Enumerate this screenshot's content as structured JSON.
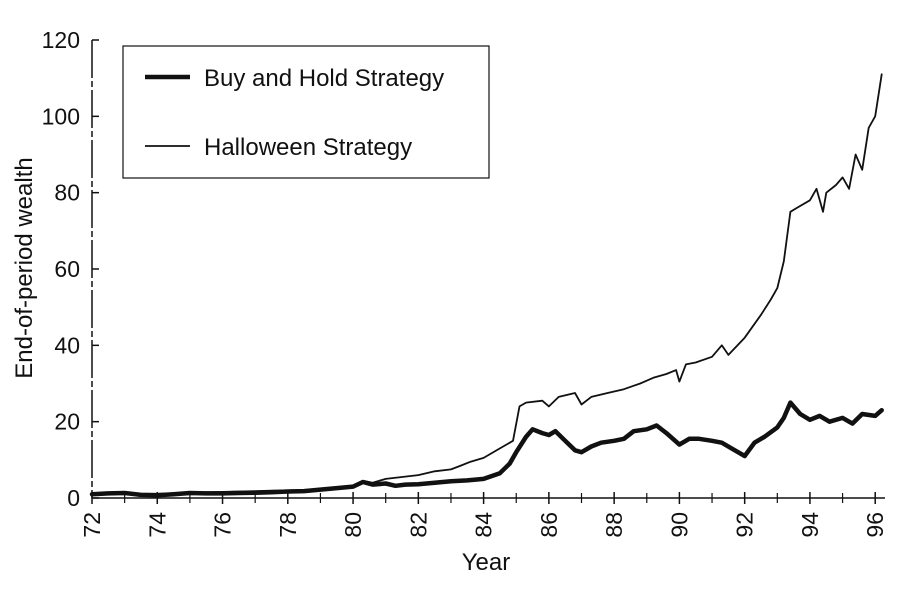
{
  "chart_data": {
    "type": "line",
    "title": "",
    "xlabel": "Year",
    "ylabel": "End-of-period wealth",
    "xlim": [
      1972,
      1996.3
    ],
    "ylim": [
      0,
      120
    ],
    "x_ticks": [
      72,
      74,
      76,
      78,
      80,
      82,
      84,
      86,
      88,
      90,
      92,
      94,
      96
    ],
    "x_tick_labels": [
      "72",
      "74",
      "76",
      "78",
      "80",
      "82",
      "84",
      "86",
      "88",
      "90",
      "92",
      "94",
      "96"
    ],
    "y_ticks": [
      0,
      20,
      40,
      60,
      80,
      100,
      120
    ],
    "y_tick_labels": [
      "0",
      "20",
      "40",
      "60",
      "80",
      "100",
      "120"
    ],
    "grid": false,
    "legend_position": "top-left",
    "series": [
      {
        "name": "Buy and Hold Strategy",
        "style": "thick",
        "color": "#111111",
        "x": [
          1972.0,
          1972.5,
          1973.0,
          1973.5,
          1974.0,
          1974.5,
          1975.0,
          1975.5,
          1976.0,
          1976.5,
          1977.0,
          1977.5,
          1978.0,
          1978.5,
          1979.0,
          1979.5,
          1980.0,
          1980.3,
          1980.6,
          1981.0,
          1981.3,
          1981.6,
          1982.0,
          1982.5,
          1983.0,
          1983.5,
          1984.0,
          1984.5,
          1984.8,
          1985.0,
          1985.3,
          1985.5,
          1985.8,
          1986.0,
          1986.2,
          1986.5,
          1986.8,
          1987.0,
          1987.3,
          1987.6,
          1988.0,
          1988.3,
          1988.6,
          1989.0,
          1989.3,
          1989.6,
          1990.0,
          1990.3,
          1990.6,
          1991.0,
          1991.3,
          1991.6,
          1992.0,
          1992.3,
          1992.6,
          1993.0,
          1993.2,
          1993.4,
          1993.7,
          1994.0,
          1994.3,
          1994.6,
          1995.0,
          1995.3,
          1995.6,
          1996.0,
          1996.2
        ],
        "y": [
          1.0,
          1.2,
          1.3,
          0.8,
          0.7,
          1.0,
          1.3,
          1.2,
          1.2,
          1.3,
          1.4,
          1.5,
          1.7,
          1.8,
          2.2,
          2.6,
          3.0,
          4.2,
          3.5,
          3.8,
          3.2,
          3.5,
          3.6,
          4.0,
          4.4,
          4.6,
          5.0,
          6.5,
          9.0,
          12.0,
          16.0,
          18.0,
          17.0,
          16.5,
          17.5,
          15.0,
          12.5,
          12.0,
          13.5,
          14.5,
          15.0,
          15.5,
          17.5,
          18.0,
          19.0,
          17.0,
          14.0,
          15.5,
          15.5,
          15.0,
          14.5,
          13.0,
          11.0,
          14.5,
          16.0,
          18.5,
          21.0,
          25.0,
          22.0,
          20.5,
          21.5,
          20.0,
          21.0,
          19.5,
          22.0,
          21.5,
          23.0
        ]
      },
      {
        "name": "Halloween Strategy",
        "style": "thin",
        "color": "#111111",
        "x": [
          1972.0,
          1972.5,
          1973.0,
          1973.5,
          1974.0,
          1974.5,
          1975.0,
          1975.5,
          1976.0,
          1976.5,
          1977.0,
          1977.5,
          1978.0,
          1978.5,
          1979.0,
          1979.5,
          1980.0,
          1980.3,
          1980.6,
          1981.0,
          1981.5,
          1982.0,
          1982.5,
          1983.0,
          1983.3,
          1983.6,
          1984.0,
          1984.5,
          1984.9,
          1985.1,
          1985.3,
          1985.8,
          1986.0,
          1986.3,
          1986.8,
          1987.0,
          1987.3,
          1987.8,
          1988.3,
          1988.8,
          1989.2,
          1989.6,
          1989.9,
          1990.0,
          1990.2,
          1990.5,
          1991.0,
          1991.3,
          1991.5,
          1992.0,
          1992.5,
          1992.8,
          1993.0,
          1993.2,
          1993.4,
          1993.6,
          1994.0,
          1994.2,
          1994.4,
          1994.5,
          1994.8,
          1995.0,
          1995.2,
          1995.4,
          1995.6,
          1995.8,
          1996.0,
          1996.2
        ],
        "y": [
          1.0,
          1.1,
          1.2,
          1.1,
          1.1,
          1.2,
          1.4,
          1.5,
          1.6,
          1.7,
          1.8,
          1.9,
          2.0,
          2.1,
          2.3,
          2.6,
          3.0,
          4.5,
          4.0,
          5.0,
          5.5,
          6.0,
          7.0,
          7.5,
          8.5,
          9.5,
          10.5,
          13.0,
          15.0,
          24.0,
          25.0,
          25.5,
          24.0,
          26.5,
          27.5,
          24.5,
          26.5,
          27.5,
          28.5,
          30.0,
          31.5,
          32.5,
          33.5,
          30.5,
          35.0,
          35.5,
          37.0,
          40.0,
          37.5,
          42.0,
          48.0,
          52.0,
          55.0,
          62.0,
          75.0,
          76.0,
          78.0,
          81.0,
          75.0,
          80.0,
          82.0,
          84.0,
          81.0,
          90.0,
          86.0,
          97.0,
          100.0,
          111.0
        ]
      }
    ]
  }
}
